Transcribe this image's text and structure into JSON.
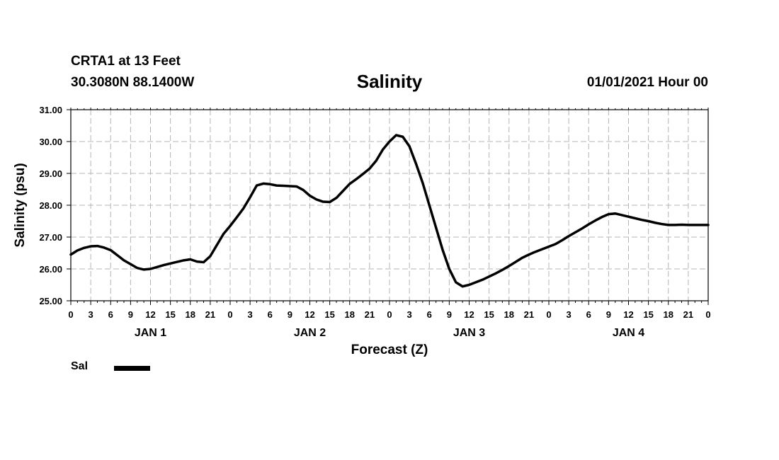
{
  "header": {
    "station": "CRTA1 at 13 Feet",
    "coords": "30.3080N 88.1400W",
    "title": "Salinity",
    "date": "01/01/2021 Hour 00"
  },
  "legend": {
    "label": "Sal"
  },
  "chart_data": {
    "type": "line",
    "title": "Salinity",
    "xlabel": "Forecast (Z)",
    "ylabel": "Salinity (psu)",
    "ylim": [
      25.0,
      31.0
    ],
    "xlim": [
      0,
      96
    ],
    "yticks": [
      "25.00",
      "26.00",
      "27.00",
      "28.00",
      "29.00",
      "30.00",
      "31.00"
    ],
    "xtick_labels": [
      "0",
      "3",
      "6",
      "9",
      "12",
      "15",
      "18",
      "21",
      "0",
      "3",
      "6",
      "9",
      "12",
      "15",
      "18",
      "21",
      "0",
      "3",
      "6",
      "9",
      "12",
      "15",
      "18",
      "21",
      "0",
      "3",
      "6",
      "9",
      "12",
      "15",
      "18",
      "21",
      "0"
    ],
    "day_labels": [
      {
        "label": "JAN 1",
        "hour": 12
      },
      {
        "label": "JAN 2",
        "hour": 36
      },
      {
        "label": "JAN 3",
        "hour": 60
      },
      {
        "label": "JAN 4",
        "hour": 84
      }
    ],
    "grid": true,
    "series": [
      {
        "name": "Sal",
        "color": "#000000",
        "x": [
          0,
          1,
          2,
          3,
          4,
          5,
          6,
          7,
          8,
          9,
          10,
          11,
          12,
          13,
          14,
          15,
          16,
          17,
          18,
          19,
          20,
          21,
          22,
          23,
          24,
          25,
          26,
          27,
          28,
          29,
          30,
          31,
          32,
          33,
          34,
          35,
          36,
          37,
          38,
          39,
          40,
          41,
          42,
          43,
          44,
          45,
          46,
          47,
          48,
          49,
          50,
          51,
          52,
          53,
          54,
          55,
          56,
          57,
          58,
          59,
          60,
          61,
          62,
          63,
          64,
          65,
          66,
          67,
          68,
          69,
          70,
          71,
          72,
          73,
          74,
          75,
          76,
          77,
          78,
          79,
          80,
          81,
          82,
          83,
          84,
          85,
          86,
          87,
          88,
          89,
          90,
          91,
          92,
          93,
          94,
          95,
          96
        ],
        "values": [
          26.45,
          26.58,
          26.66,
          26.71,
          26.72,
          26.67,
          26.59,
          26.43,
          26.27,
          26.15,
          26.03,
          25.98,
          26.0,
          26.06,
          26.12,
          26.17,
          26.22,
          26.27,
          26.3,
          26.23,
          26.21,
          26.4,
          26.75,
          27.1,
          27.35,
          27.62,
          27.9,
          28.25,
          28.62,
          28.68,
          28.66,
          28.62,
          28.61,
          28.6,
          28.59,
          28.48,
          28.3,
          28.18,
          28.11,
          28.1,
          28.23,
          28.45,
          28.67,
          28.82,
          28.98,
          29.15,
          29.4,
          29.75,
          30.0,
          30.2,
          30.15,
          29.85,
          29.3,
          28.7,
          28.0,
          27.3,
          26.6,
          26.0,
          25.58,
          25.45,
          25.5,
          25.58,
          25.66,
          25.76,
          25.86,
          25.97,
          26.09,
          26.22,
          26.35,
          26.45,
          26.54,
          26.62,
          26.7,
          26.78,
          26.9,
          27.03,
          27.15,
          27.27,
          27.4,
          27.52,
          27.63,
          27.72,
          27.74,
          27.69,
          27.64,
          27.59,
          27.54,
          27.5,
          27.45,
          27.41,
          27.38,
          27.38,
          27.39,
          27.38,
          27.38,
          27.38,
          27.38
        ]
      }
    ]
  }
}
